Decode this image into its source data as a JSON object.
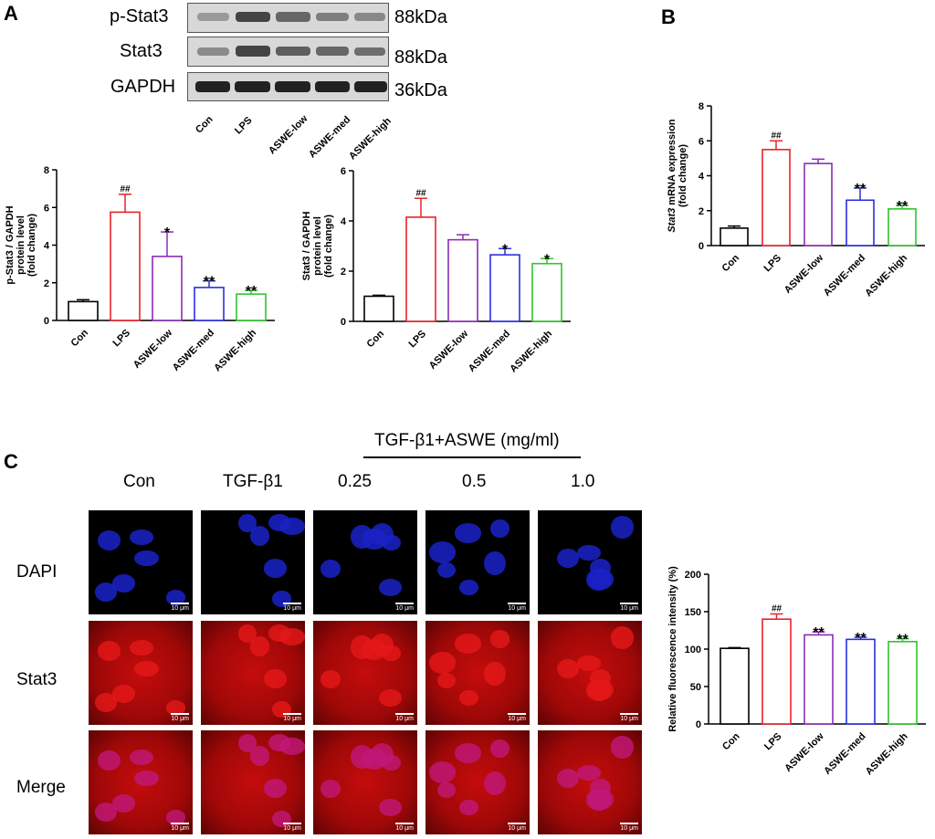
{
  "panels": {
    "a": "A",
    "b": "B",
    "c": "C"
  },
  "blot": {
    "rows": [
      {
        "label": "p-Stat3",
        "kda": "88kDa"
      },
      {
        "label": "Stat3",
        "kda": "88kDa"
      },
      {
        "label": "GAPDH",
        "kda": "36kDa"
      }
    ],
    "lanes": [
      "Con",
      "LPS",
      "ASWE-low",
      "ASWE-med",
      "ASWE-high"
    ]
  },
  "micro": {
    "header": "TGF-β1+ASWE (mg/ml)",
    "columns": [
      "Con",
      "TGF-β1",
      "0.25",
      "0.5",
      "1.0"
    ],
    "rows": [
      "DAPI",
      "Stat3",
      "Merge"
    ],
    "scalebar": "10 μm",
    "colors": {
      "dapi": "#1a22c8",
      "stat3": "#d81010",
      "merge": "#c0187a"
    }
  },
  "colors": {
    "series": [
      "#000000",
      "#e8232a",
      "#8b2db3",
      "#2b2ee0",
      "#2fc52f"
    ]
  },
  "chart_data": [
    {
      "type": "bar",
      "id": "pstat3",
      "categories": [
        "Con",
        "LPS",
        "ASWE-low",
        "ASWE-med",
        "ASWE-high"
      ],
      "values": [
        1.0,
        5.75,
        3.4,
        1.75,
        1.4
      ],
      "errors": [
        0.1,
        0.95,
        1.3,
        0.35,
        0.2
      ],
      "annotations": [
        "",
        "##",
        "*",
        "**",
        "**"
      ],
      "ylabel": [
        "p-Stat3 / GAPDH",
        "protein level",
        "(fold change)"
      ],
      "ylim": [
        0,
        8
      ],
      "yticks": [
        0,
        2,
        4,
        6,
        8
      ]
    },
    {
      "type": "bar",
      "id": "stat3",
      "categories": [
        "Con",
        "LPS",
        "ASWE-low",
        "ASWE-med",
        "ASWE-high"
      ],
      "values": [
        1.0,
        4.15,
        3.25,
        2.65,
        2.3
      ],
      "errors": [
        0.04,
        0.75,
        0.2,
        0.25,
        0.2
      ],
      "annotations": [
        "",
        "##",
        "",
        "*",
        "*"
      ],
      "ylabel": [
        "Stat3 / GAPDH",
        "protein level",
        "(fold change)"
      ],
      "ylim": [
        0,
        6
      ],
      "yticks": [
        0,
        2,
        4,
        6
      ]
    },
    {
      "type": "bar",
      "id": "mrna",
      "categories": [
        "Con",
        "LPS",
        "ASWE-low",
        "ASWE-med",
        "ASWE-high"
      ],
      "values": [
        1.0,
        5.5,
        4.7,
        2.6,
        2.1
      ],
      "errors": [
        0.12,
        0.5,
        0.25,
        0.7,
        0.2
      ],
      "annotations": [
        "",
        "##",
        "",
        "**",
        "**"
      ],
      "ylabel": [
        "Stat3 mRNA expression",
        "(fold change)"
      ],
      "ylim": [
        0,
        8
      ],
      "yticks": [
        0,
        2,
        4,
        6,
        8
      ]
    },
    {
      "type": "bar",
      "id": "fluor",
      "categories": [
        "Con",
        "LPS",
        "ASWE-low",
        "ASWE-med",
        "ASWE-high"
      ],
      "values": [
        101,
        140,
        119,
        113,
        110
      ],
      "errors": [
        1,
        7,
        4,
        3,
        4
      ],
      "annotations": [
        "",
        "##",
        "**",
        "**",
        "**"
      ],
      "ylabel": [
        "Relative fluorescence intensity (%)"
      ],
      "ylim": [
        0,
        200
      ],
      "yticks": [
        0,
        50,
        100,
        150,
        200
      ]
    }
  ]
}
